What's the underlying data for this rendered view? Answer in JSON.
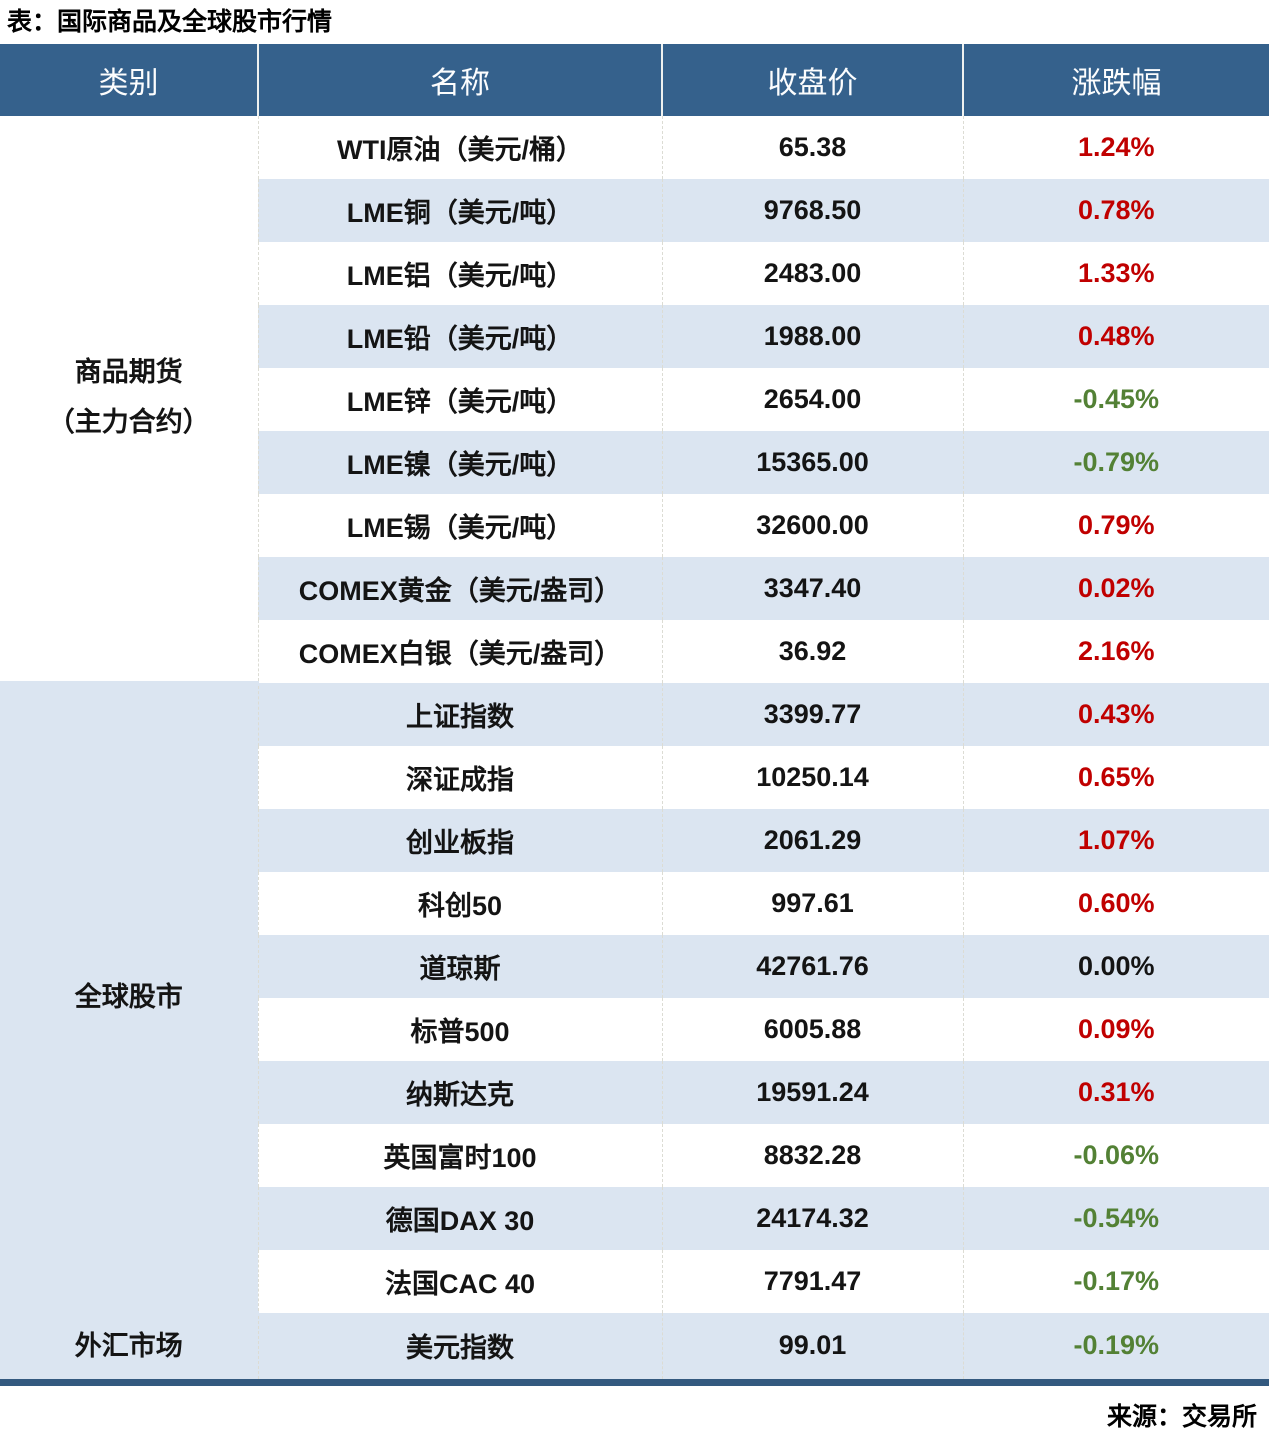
{
  "title": "表：国际商品及全球股市行情",
  "source": "来源：交易所",
  "colors": {
    "header_bg": "#35618c",
    "row_alt_bg": "#dbe5f1",
    "row_bg": "#ffffff",
    "up_text": "#c00000",
    "down_text": "#538135",
    "flat_text": "#141414",
    "bottom_border": "#33597f"
  },
  "table": {
    "headers": [
      "类别",
      "名称",
      "收盘价",
      "涨跌幅"
    ],
    "groups": [
      {
        "category": "商品期货\n（主力合约）",
        "rows": [
          {
            "name": "WTI原油（美元/桶）",
            "close": "65.38",
            "change": "1.24%",
            "direction": "up"
          },
          {
            "name": "LME铜（美元/吨）",
            "close": "9768.50",
            "change": "0.78%",
            "direction": "up"
          },
          {
            "name": "LME铝（美元/吨）",
            "close": "2483.00",
            "change": "1.33%",
            "direction": "up"
          },
          {
            "name": "LME铅（美元/吨）",
            "close": "1988.00",
            "change": "0.48%",
            "direction": "up"
          },
          {
            "name": "LME锌（美元/吨）",
            "close": "2654.00",
            "change": "-0.45%",
            "direction": "down"
          },
          {
            "name": "LME镍（美元/吨）",
            "close": "15365.00",
            "change": "-0.79%",
            "direction": "down"
          },
          {
            "name": "LME锡（美元/吨）",
            "close": "32600.00",
            "change": "0.79%",
            "direction": "up"
          },
          {
            "name": "COMEX黄金（美元/盎司）",
            "close": "3347.40",
            "change": "0.02%",
            "direction": "up"
          },
          {
            "name": "COMEX白银（美元/盎司）",
            "close": "36.92",
            "change": "2.16%",
            "direction": "up"
          }
        ]
      },
      {
        "category": "全球股市",
        "rows": [
          {
            "name": "上证指数",
            "close": "3399.77",
            "change": "0.43%",
            "direction": "up"
          },
          {
            "name": "深证成指",
            "close": "10250.14",
            "change": "0.65%",
            "direction": "up"
          },
          {
            "name": "创业板指",
            "close": "2061.29",
            "change": "1.07%",
            "direction": "up"
          },
          {
            "name": "科创50",
            "close": "997.61",
            "change": "0.60%",
            "direction": "up"
          },
          {
            "name": "道琼斯",
            "close": "42761.76",
            "change": "0.00%",
            "direction": "flat"
          },
          {
            "name": "标普500",
            "close": "6005.88",
            "change": "0.09%",
            "direction": "up"
          },
          {
            "name": "纳斯达克",
            "close": "19591.24",
            "change": "0.31%",
            "direction": "up"
          },
          {
            "name": "英国富时100",
            "close": "8832.28",
            "change": "-0.06%",
            "direction": "down"
          },
          {
            "name": "德国DAX 30",
            "close": "24174.32",
            "change": "-0.54%",
            "direction": "down"
          },
          {
            "name": "法国CAC 40",
            "close": "7791.47",
            "change": "-0.17%",
            "direction": "down"
          }
        ]
      },
      {
        "category": "外汇市场",
        "rows": [
          {
            "name": "美元指数",
            "close": "99.01",
            "change": "-0.19%",
            "direction": "down"
          }
        ]
      }
    ]
  },
  "chart_data": {
    "type": "table",
    "title": "表：国际商品及全球股市行情",
    "columns": [
      "类别",
      "名称",
      "收盘价",
      "涨跌幅"
    ],
    "rows": [
      [
        "商品期货（主力合约）",
        "WTI原油（美元/桶）",
        65.38,
        "1.24%"
      ],
      [
        "商品期货（主力合约）",
        "LME铜（美元/吨）",
        9768.5,
        "0.78%"
      ],
      [
        "商品期货（主力合约）",
        "LME铝（美元/吨）",
        2483.0,
        "1.33%"
      ],
      [
        "商品期货（主力合约）",
        "LME铅（美元/吨）",
        1988.0,
        "0.48%"
      ],
      [
        "商品期货（主力合约）",
        "LME锌（美元/吨）",
        2654.0,
        "-0.45%"
      ],
      [
        "商品期货（主力合约）",
        "LME镍（美元/吨）",
        15365.0,
        "-0.79%"
      ],
      [
        "商品期货（主力合约）",
        "LME锡（美元/吨）",
        32600.0,
        "0.79%"
      ],
      [
        "商品期货（主力合约）",
        "COMEX黄金（美元/盎司）",
        3347.4,
        "0.02%"
      ],
      [
        "商品期货（主力合约）",
        "COMEX白银（美元/盎司）",
        36.92,
        "2.16%"
      ],
      [
        "全球股市",
        "上证指数",
        3399.77,
        "0.43%"
      ],
      [
        "全球股市",
        "深证成指",
        10250.14,
        "0.65%"
      ],
      [
        "全球股市",
        "创业板指",
        2061.29,
        "1.07%"
      ],
      [
        "全球股市",
        "科创50",
        997.61,
        "0.60%"
      ],
      [
        "全球股市",
        "道琼斯",
        42761.76,
        "0.00%"
      ],
      [
        "全球股市",
        "标普500",
        6005.88,
        "0.09%"
      ],
      [
        "全球股市",
        "纳斯达克",
        19591.24,
        "0.31%"
      ],
      [
        "全球股市",
        "英国富时100",
        8832.28,
        "-0.06%"
      ],
      [
        "全球股市",
        "德国DAX 30",
        24174.32,
        "-0.54%"
      ],
      [
        "全球股市",
        "法国CAC 40",
        7791.47,
        "-0.17%"
      ],
      [
        "外汇市场",
        "美元指数",
        99.01,
        "-0.19%"
      ]
    ],
    "notes": "涨跌幅红色=上涨，绿色=下跌，黑色=持平；来源：交易所"
  }
}
